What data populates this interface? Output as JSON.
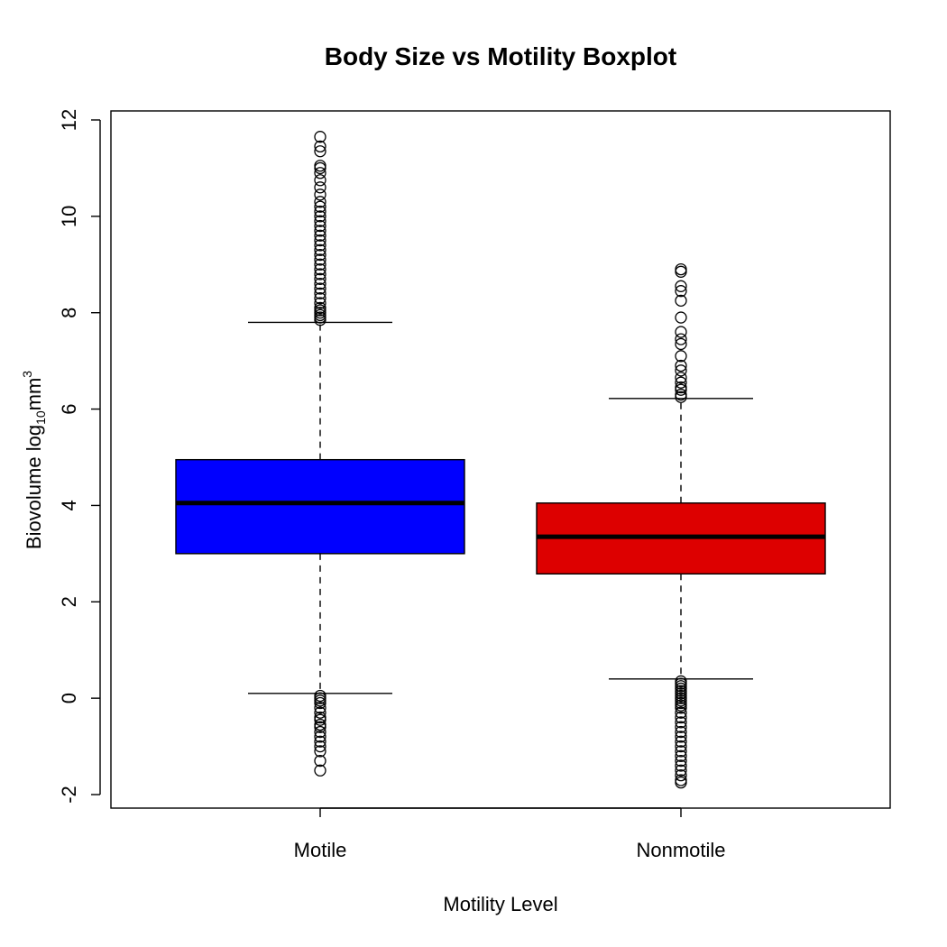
{
  "chart_data": {
    "type": "boxplot",
    "title": "Body Size vs Motility Boxplot",
    "xlabel": "Motility Level",
    "ylabel": {
      "main": "Biovolume log",
      "subscript": "10",
      "unit": "mm",
      "superscript": "3"
    },
    "ylim": [
      -2.3,
      12.2
    ],
    "yticks": [
      -2,
      0,
      2,
      4,
      6,
      8,
      10,
      12
    ],
    "categories": [
      "Motile",
      "Nonmotile"
    ],
    "boxes": [
      {
        "name": "Motile",
        "color": "#0000ff",
        "lower_whisker": 0.1,
        "q1": 3.0,
        "median": 4.05,
        "q3": 4.95,
        "upper_whisker": 7.8,
        "outliers": [
          7.85,
          7.9,
          7.95,
          8.0,
          8.05,
          8.1,
          8.2,
          8.3,
          8.4,
          8.5,
          8.6,
          8.7,
          8.8,
          8.9,
          9.0,
          9.1,
          9.2,
          9.3,
          9.4,
          9.5,
          9.6,
          9.7,
          9.8,
          9.9,
          10.0,
          10.1,
          10.2,
          10.3,
          10.45,
          10.6,
          10.75,
          10.9,
          11.0,
          11.05,
          11.35,
          11.45,
          11.65,
          0.05,
          0.0,
          -0.05,
          -0.1,
          -0.2,
          -0.3,
          -0.4,
          -0.45,
          -0.55,
          -0.6,
          -0.7,
          -0.8,
          -0.9,
          -1.0,
          -1.1,
          -1.3,
          -1.5
        ]
      },
      {
        "name": "Nonmotile",
        "color": "#dd0000",
        "lower_whisker": 0.4,
        "q1": 2.58,
        "median": 3.35,
        "q3": 4.05,
        "upper_whisker": 6.22,
        "outliers": [
          6.25,
          6.3,
          6.4,
          6.45,
          6.55,
          6.65,
          6.8,
          6.9,
          7.1,
          7.35,
          7.45,
          7.6,
          7.9,
          8.25,
          8.45,
          8.55,
          8.85,
          8.9,
          0.35,
          0.3,
          0.25,
          0.2,
          0.15,
          0.1,
          0.05,
          0.0,
          -0.05,
          -0.1,
          -0.15,
          -0.2,
          -0.3,
          -0.4,
          -0.5,
          -0.6,
          -0.7,
          -0.8,
          -0.9,
          -1.0,
          -1.1,
          -1.2,
          -1.3,
          -1.4,
          -1.5,
          -1.6,
          -1.7,
          -1.75
        ]
      }
    ]
  }
}
